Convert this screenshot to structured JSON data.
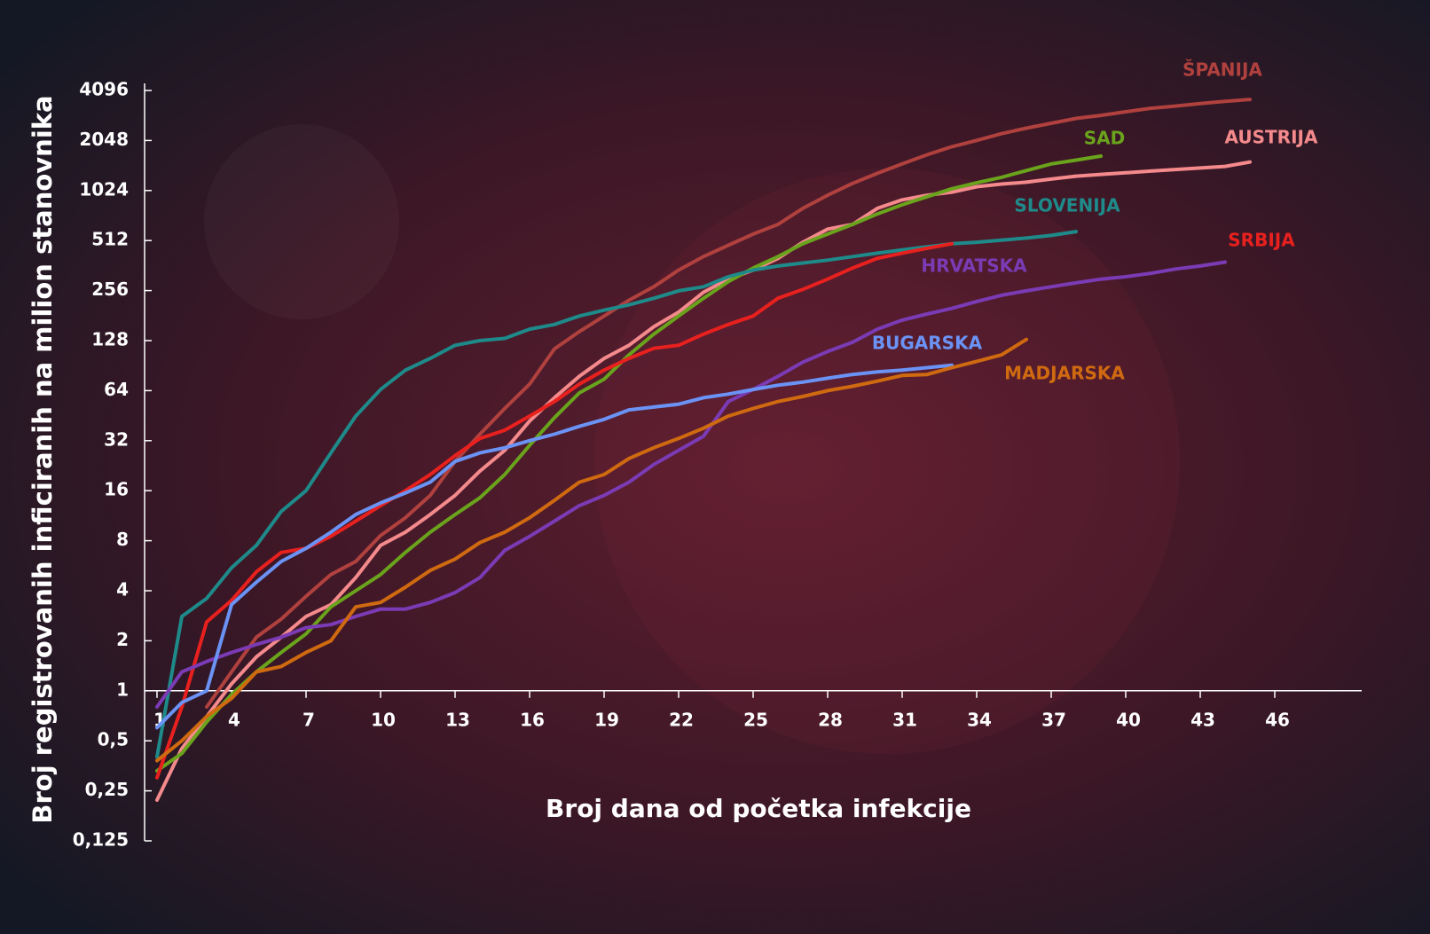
{
  "chart_data": {
    "type": "line",
    "xlabel": "Broj dana od početka infekcije",
    "ylabel": "Broj registrovanih inficiranih na milion stanovnika",
    "yscale": "log",
    "xlim": [
      0.5,
      49.5
    ],
    "ylim": [
      0.125,
      4096
    ],
    "xticks": [
      1,
      4,
      7,
      10,
      13,
      16,
      19,
      22,
      25,
      28,
      31,
      34,
      37,
      40,
      43,
      46
    ],
    "yticks": [
      {
        "value": 0.125,
        "label": "0,125"
      },
      {
        "value": 0.25,
        "label": "0,25"
      },
      {
        "value": 0.5,
        "label": "0,5"
      },
      1,
      2,
      4,
      8,
      16,
      32,
      64,
      128,
      256,
      512,
      1024,
      2048,
      4096
    ],
    "x": [
      1,
      2,
      3,
      4,
      5,
      6,
      7,
      8,
      9,
      10,
      11,
      12,
      13,
      14,
      15,
      16,
      17,
      18,
      19,
      20,
      21,
      22,
      23,
      24,
      25,
      26,
      27,
      28,
      29,
      30,
      31,
      32,
      33,
      34,
      35,
      36,
      37,
      38,
      39,
      40,
      41,
      42,
      43,
      44,
      45
    ],
    "series": [
      {
        "name": "ŠPANIJA",
        "color": "#b0413e",
        "values": [
          null,
          null,
          0.8,
          1.3,
          2.1,
          2.7,
          3.7,
          5,
          6,
          8.6,
          11,
          15,
          24,
          35,
          50,
          70,
          114,
          145,
          180,
          224,
          270,
          340,
          410,
          480,
          560,
          640,
          800,
          960,
          1130,
          1300,
          1480,
          1680,
          1880,
          2050,
          2250,
          2430,
          2600,
          2780,
          2900,
          3050,
          3200,
          3300,
          3420,
          3520,
          3620
        ]
      },
      {
        "name": "AUSTRIJA",
        "color": "#f48a8c",
        "values": [
          0.22,
          0.45,
          0.7,
          1.1,
          1.6,
          2.1,
          2.8,
          3.3,
          4.8,
          7.5,
          9,
          11.5,
          15,
          21,
          28,
          42,
          58,
          78,
          100,
          120,
          155,
          190,
          250,
          300,
          340,
          400,
          500,
          600,
          640,
          800,
          900,
          960,
          1000,
          1080,
          1120,
          1150,
          1200,
          1250,
          1280,
          1310,
          1340,
          1370,
          1400,
          1430,
          1520
        ]
      },
      {
        "name": "SAD",
        "color": "#6aa31c",
        "values": [
          0.33,
          0.42,
          0.65,
          0.95,
          1.3,
          1.7,
          2.2,
          3.2,
          4,
          5,
          6.8,
          9,
          11.5,
          14.5,
          20,
          30,
          44,
          62,
          75,
          105,
          140,
          180,
          230,
          290,
          350,
          410,
          490,
          560,
          640,
          740,
          840,
          940,
          1050,
          1140,
          1230,
          1350,
          1480,
          1560,
          1650,
          null,
          null,
          null,
          null,
          null,
          null
        ]
      },
      {
        "name": "SLOVENIJA",
        "color": "#1e8a8a",
        "values": [
          0.4,
          2.8,
          3.6,
          5.5,
          7.5,
          12,
          16,
          27,
          45,
          65,
          85,
          100,
          120,
          128,
          132,
          150,
          160,
          180,
          195,
          210,
          230,
          255,
          270,
          310,
          340,
          360,
          375,
          390,
          410,
          430,
          450,
          470,
          490,
          500,
          515,
          530,
          550,
          580,
          null,
          null,
          null,
          null,
          null,
          null,
          null
        ]
      },
      {
        "name": "SRBIJA",
        "color": "#e8201e",
        "values": [
          0.3,
          0.8,
          2.6,
          3.5,
          5.2,
          6.8,
          7.2,
          8.5,
          10.5,
          13,
          16,
          20,
          26,
          33,
          37,
          45,
          55,
          70,
          85,
          100,
          115,
          120,
          140,
          160,
          180,
          230,
          260,
          300,
          350,
          400,
          430,
          460,
          490,
          null,
          null,
          null,
          null,
          null,
          null,
          null,
          null,
          null,
          null,
          null,
          null
        ]
      },
      {
        "name": "HRVATSKA",
        "color": "#7b3bb5",
        "values": [
          0.8,
          1.3,
          1.5,
          1.7,
          1.9,
          2.1,
          2.4,
          2.5,
          2.8,
          3.1,
          3.1,
          3.4,
          3.9,
          4.8,
          7,
          8.5,
          10.5,
          13,
          15,
          18,
          23,
          28,
          34,
          55,
          65,
          78,
          95,
          110,
          125,
          150,
          170,
          185,
          200,
          220,
          240,
          255,
          270,
          285,
          300,
          310,
          325,
          345,
          360,
          380,
          null
        ]
      },
      {
        "name": "BUGARSKA",
        "color": "#6b93f5",
        "values": [
          0.6,
          0.85,
          1.0,
          3.3,
          4.5,
          6,
          7.2,
          9,
          11.5,
          13.5,
          15.5,
          18,
          24,
          27,
          29,
          32,
          35,
          39,
          43,
          49,
          51,
          53,
          58,
          61,
          65,
          69,
          72,
          76,
          80,
          83,
          85,
          88,
          91,
          null,
          null,
          null,
          null,
          null,
          null,
          null,
          null,
          null,
          null,
          null,
          null
        ]
      },
      {
        "name": "MADJARSKA",
        "color": "#d06a10",
        "values": [
          0.38,
          0.5,
          0.7,
          0.9,
          1.3,
          1.4,
          1.7,
          2.0,
          3.2,
          3.4,
          4.2,
          5.3,
          6.2,
          7.8,
          9,
          11,
          14,
          18,
          20,
          25,
          29,
          33,
          38,
          45,
          50,
          55,
          59,
          64,
          68,
          73,
          79,
          80,
          88,
          96,
          105,
          130,
          null,
          null,
          null,
          null,
          null,
          null,
          null,
          null,
          null
        ]
      }
    ]
  }
}
